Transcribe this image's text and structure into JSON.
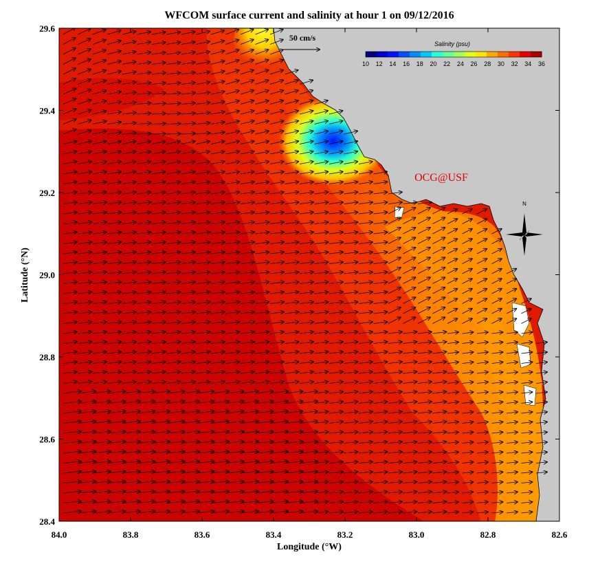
{
  "title": "WFCOM surface current and salinity at hour 1 on 09/12/2016",
  "credit": "OCG@USF",
  "x_axis": {
    "label": "Longitude (°W)",
    "ticks": [
      "84.0",
      "83.8",
      "83.6",
      "83.4",
      "83.2",
      "83.0",
      "82.8",
      "82.6"
    ],
    "range": [
      84.0,
      82.6
    ]
  },
  "y_axis": {
    "label": "Latitude (°N)",
    "ticks": [
      "29.6",
      "29.4",
      "29.2",
      "29.0",
      "28.8",
      "28.6",
      "28.4"
    ],
    "range": [
      28.4,
      29.6
    ]
  },
  "scale_vector": {
    "label": "50 cm/s",
    "speed_cm_s": 50
  },
  "colorbar": {
    "title": "Salinity (psu)",
    "ticks": [
      "10",
      "12",
      "14",
      "16",
      "18",
      "20",
      "22",
      "24",
      "26",
      "28",
      "30",
      "32",
      "34",
      "36"
    ],
    "colors": [
      "#00007f",
      "#0000c8",
      "#0014ff",
      "#0050ff",
      "#008cff",
      "#00c8ff",
      "#28ffd4",
      "#64ff98",
      "#a0ff5c",
      "#dcff20",
      "#ffe600",
      "#ffaa00",
      "#ff6e00",
      "#ff3200",
      "#e60000",
      "#aa0000"
    ]
  },
  "compass": {
    "label": "N"
  },
  "colors": {
    "land": "#c8c8c8",
    "background": "#ffffff",
    "credit": "#e00000"
  }
}
